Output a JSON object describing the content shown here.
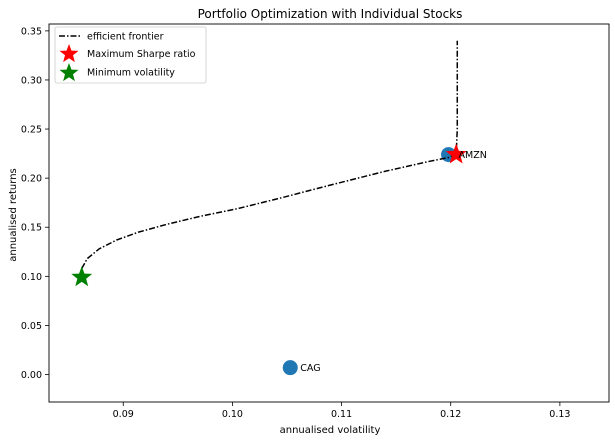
{
  "chart_data": {
    "type": "scatter",
    "title": "Portfolio Optimization with Individual Stocks",
    "xlabel": "annualised volatility",
    "ylabel": "annualised returns",
    "xlim": [
      0.0832,
      0.1345
    ],
    "ylim": [
      -0.028,
      0.357
    ],
    "xticks": [
      0.09,
      0.1,
      0.11,
      0.12,
      0.13
    ],
    "xtick_labels": [
      "0.09",
      "0.10",
      "0.11",
      "0.12",
      "0.13"
    ],
    "yticks": [
      0.0,
      0.05,
      0.1,
      0.15,
      0.2,
      0.25,
      0.3,
      0.35
    ],
    "ytick_labels": [
      "0.00",
      "0.05",
      "0.10",
      "0.15",
      "0.20",
      "0.25",
      "0.30",
      "0.35"
    ],
    "grid": false,
    "legend_position": "top-left",
    "stocks": {
      "color": "#1f77b4",
      "points": [
        {
          "label": "AMZN",
          "x": 0.1198,
          "y": 0.224
        },
        {
          "label": "CAG",
          "x": 0.1053,
          "y": 0.007
        }
      ]
    },
    "series": [
      {
        "name": "efficient frontier",
        "kind": "line",
        "style": "dash-dot",
        "color": "#000000",
        "points": [
          [
            0.0862,
            0.108
          ],
          [
            0.0867,
            0.118
          ],
          [
            0.0878,
            0.128
          ],
          [
            0.0894,
            0.137
          ],
          [
            0.0914,
            0.145
          ],
          [
            0.094,
            0.153
          ],
          [
            0.097,
            0.161
          ],
          [
            0.1005,
            0.169
          ],
          [
            0.1045,
            0.18
          ],
          [
            0.109,
            0.193
          ],
          [
            0.114,
            0.207
          ],
          [
            0.118,
            0.217
          ],
          [
            0.1198,
            0.221
          ],
          [
            0.1205,
            0.224
          ],
          [
            0.1206,
            0.25
          ],
          [
            0.1206,
            0.3
          ],
          [
            0.1206,
            0.34
          ]
        ]
      },
      {
        "name": "Maximum Sharpe ratio",
        "kind": "marker",
        "marker": "star",
        "color": "#ff0000",
        "x": 0.1205,
        "y": 0.224
      },
      {
        "name": "Minimum volatility",
        "kind": "marker",
        "marker": "star",
        "color": "#008000",
        "x": 0.0862,
        "y": 0.099
      }
    ]
  }
}
